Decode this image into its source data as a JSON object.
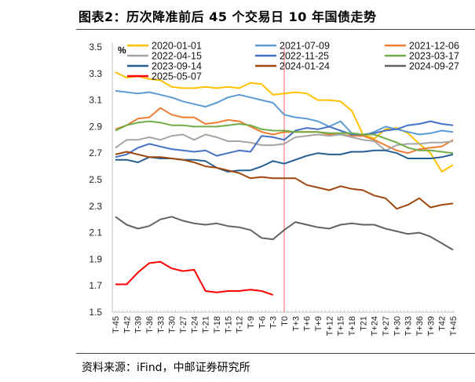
{
  "header": {
    "title": "图表2：历次降准前后 45 个交易日 10 年国债走势"
  },
  "footer": {
    "source": "资料来源：iFind，中邮证券研究所"
  },
  "chart_data": {
    "type": "line",
    "title": "",
    "ylabel": "%",
    "xlabel": "",
    "ylim": [
      1.5,
      3.5
    ],
    "yticks": [
      "3.5",
      "3.3",
      "3.1",
      "2.9",
      "2.7",
      "2.5",
      "2.3",
      "2.1",
      "1.9",
      "1.7",
      "1.5"
    ],
    "x": [
      "T-45",
      "T-42",
      "T-39",
      "T-36",
      "T-33",
      "T-30",
      "T-27",
      "T-24",
      "T-21",
      "T-18",
      "T-15",
      "T-12",
      "T-9",
      "T-6",
      "T-3",
      "T0",
      "T+3",
      "T+6",
      "T+9",
      "T+12",
      "T+15",
      "T+18",
      "T21",
      "T+24",
      "T+27",
      "T+30",
      "T+33",
      "T+36",
      "T+39",
      "T42",
      "T+45"
    ],
    "reference_line": {
      "x": "T0",
      "color": "#FF7C80"
    },
    "grid": false,
    "legend_position": "top",
    "series": [
      {
        "name": "2020-01-01",
        "color": "#FFC000",
        "values": [
          3.31,
          3.27,
          3.28,
          3.26,
          3.25,
          3.2,
          3.19,
          3.19,
          3.2,
          3.19,
          3.2,
          3.19,
          3.23,
          3.22,
          3.14,
          3.15,
          3.16,
          3.15,
          3.1,
          3.1,
          3.09,
          3.02,
          2.84,
          2.81,
          2.88,
          2.89,
          2.85,
          2.77,
          2.7,
          2.56,
          2.61
        ]
      },
      {
        "name": "2021-07-09",
        "color": "#5B9BD5",
        "values": [
          3.17,
          3.16,
          3.15,
          3.16,
          3.14,
          3.12,
          3.09,
          3.07,
          3.05,
          3.08,
          3.12,
          3.14,
          3.12,
          3.1,
          3.08,
          2.99,
          2.97,
          2.96,
          2.94,
          2.9,
          2.94,
          2.85,
          2.83,
          2.86,
          2.9,
          2.88,
          2.86,
          2.84,
          2.85,
          2.87,
          2.86
        ]
      },
      {
        "name": "2021-12-06",
        "color": "#ED7D31",
        "values": [
          2.88,
          2.91,
          2.96,
          2.97,
          3.04,
          2.99,
          2.97,
          2.97,
          2.92,
          2.93,
          2.95,
          2.94,
          2.9,
          2.86,
          2.84,
          2.86,
          2.86,
          2.86,
          2.86,
          2.84,
          2.84,
          2.83,
          2.83,
          2.8,
          2.76,
          2.72,
          2.7,
          2.73,
          2.74,
          2.75,
          2.8
        ]
      },
      {
        "name": "2022-04-15",
        "color": "#A5A5A5",
        "values": [
          2.74,
          2.8,
          2.8,
          2.82,
          2.8,
          2.83,
          2.84,
          2.8,
          2.84,
          2.82,
          2.79,
          2.79,
          2.78,
          2.76,
          2.76,
          2.77,
          2.82,
          2.83,
          2.84,
          2.83,
          2.84,
          2.82,
          2.8,
          2.79,
          2.72,
          2.76,
          2.77,
          2.77,
          2.78,
          2.78,
          2.79
        ]
      },
      {
        "name": "2022-11-25",
        "color": "#4472C4",
        "values": [
          2.67,
          2.69,
          2.74,
          2.77,
          2.75,
          2.73,
          2.72,
          2.71,
          2.72,
          2.68,
          2.7,
          2.72,
          2.71,
          2.83,
          2.82,
          2.8,
          2.87,
          2.89,
          2.88,
          2.9,
          2.87,
          2.84,
          2.84,
          2.85,
          2.87,
          2.88,
          2.91,
          2.92,
          2.94,
          2.92,
          2.91
        ]
      },
      {
        "name": "2023-03-17",
        "color": "#70AD47",
        "values": [
          2.87,
          2.91,
          2.93,
          2.94,
          2.93,
          2.91,
          2.91,
          2.9,
          2.9,
          2.9,
          2.91,
          2.92,
          2.91,
          2.88,
          2.87,
          2.87,
          2.86,
          2.86,
          2.86,
          2.85,
          2.85,
          2.85,
          2.84,
          2.84,
          2.81,
          2.78,
          2.74,
          2.72,
          2.72,
          2.71,
          2.7
        ]
      },
      {
        "name": "2023-09-14",
        "color": "#255E91",
        "values": [
          2.65,
          2.65,
          2.63,
          2.67,
          2.66,
          2.66,
          2.65,
          2.65,
          2.64,
          2.59,
          2.56,
          2.57,
          2.57,
          2.6,
          2.64,
          2.62,
          2.65,
          2.68,
          2.7,
          2.69,
          2.69,
          2.71,
          2.71,
          2.72,
          2.72,
          2.7,
          2.66,
          2.66,
          2.66,
          2.67,
          2.69
        ]
      },
      {
        "name": "2024-01-24",
        "color": "#9E480E",
        "values": [
          2.69,
          2.71,
          2.69,
          2.67,
          2.67,
          2.66,
          2.65,
          2.63,
          2.6,
          2.59,
          2.57,
          2.55,
          2.51,
          2.52,
          2.51,
          2.51,
          2.51,
          2.46,
          2.44,
          2.42,
          2.45,
          2.43,
          2.42,
          2.38,
          2.36,
          2.28,
          2.31,
          2.36,
          2.29,
          2.31,
          2.32
        ]
      },
      {
        "name": "2024-09-27",
        "color": "#636363",
        "values": [
          2.22,
          2.16,
          2.13,
          2.15,
          2.2,
          2.22,
          2.19,
          2.17,
          2.16,
          2.17,
          2.15,
          2.14,
          2.12,
          2.06,
          2.05,
          2.12,
          2.18,
          2.16,
          2.14,
          2.13,
          2.16,
          2.17,
          2.16,
          2.16,
          2.13,
          2.11,
          2.09,
          2.1,
          2.07,
          2.02,
          1.97
        ]
      },
      {
        "name": "2025-05-07",
        "color": "#FF0000",
        "values": [
          1.71,
          1.71,
          1.8,
          1.87,
          1.88,
          1.83,
          1.81,
          1.82,
          1.66,
          1.65,
          1.66,
          1.66,
          1.67,
          1.66,
          1.63,
          null,
          null,
          null,
          null,
          null,
          null,
          null,
          null,
          null,
          null,
          null,
          null,
          null,
          null,
          null,
          null
        ]
      }
    ]
  }
}
